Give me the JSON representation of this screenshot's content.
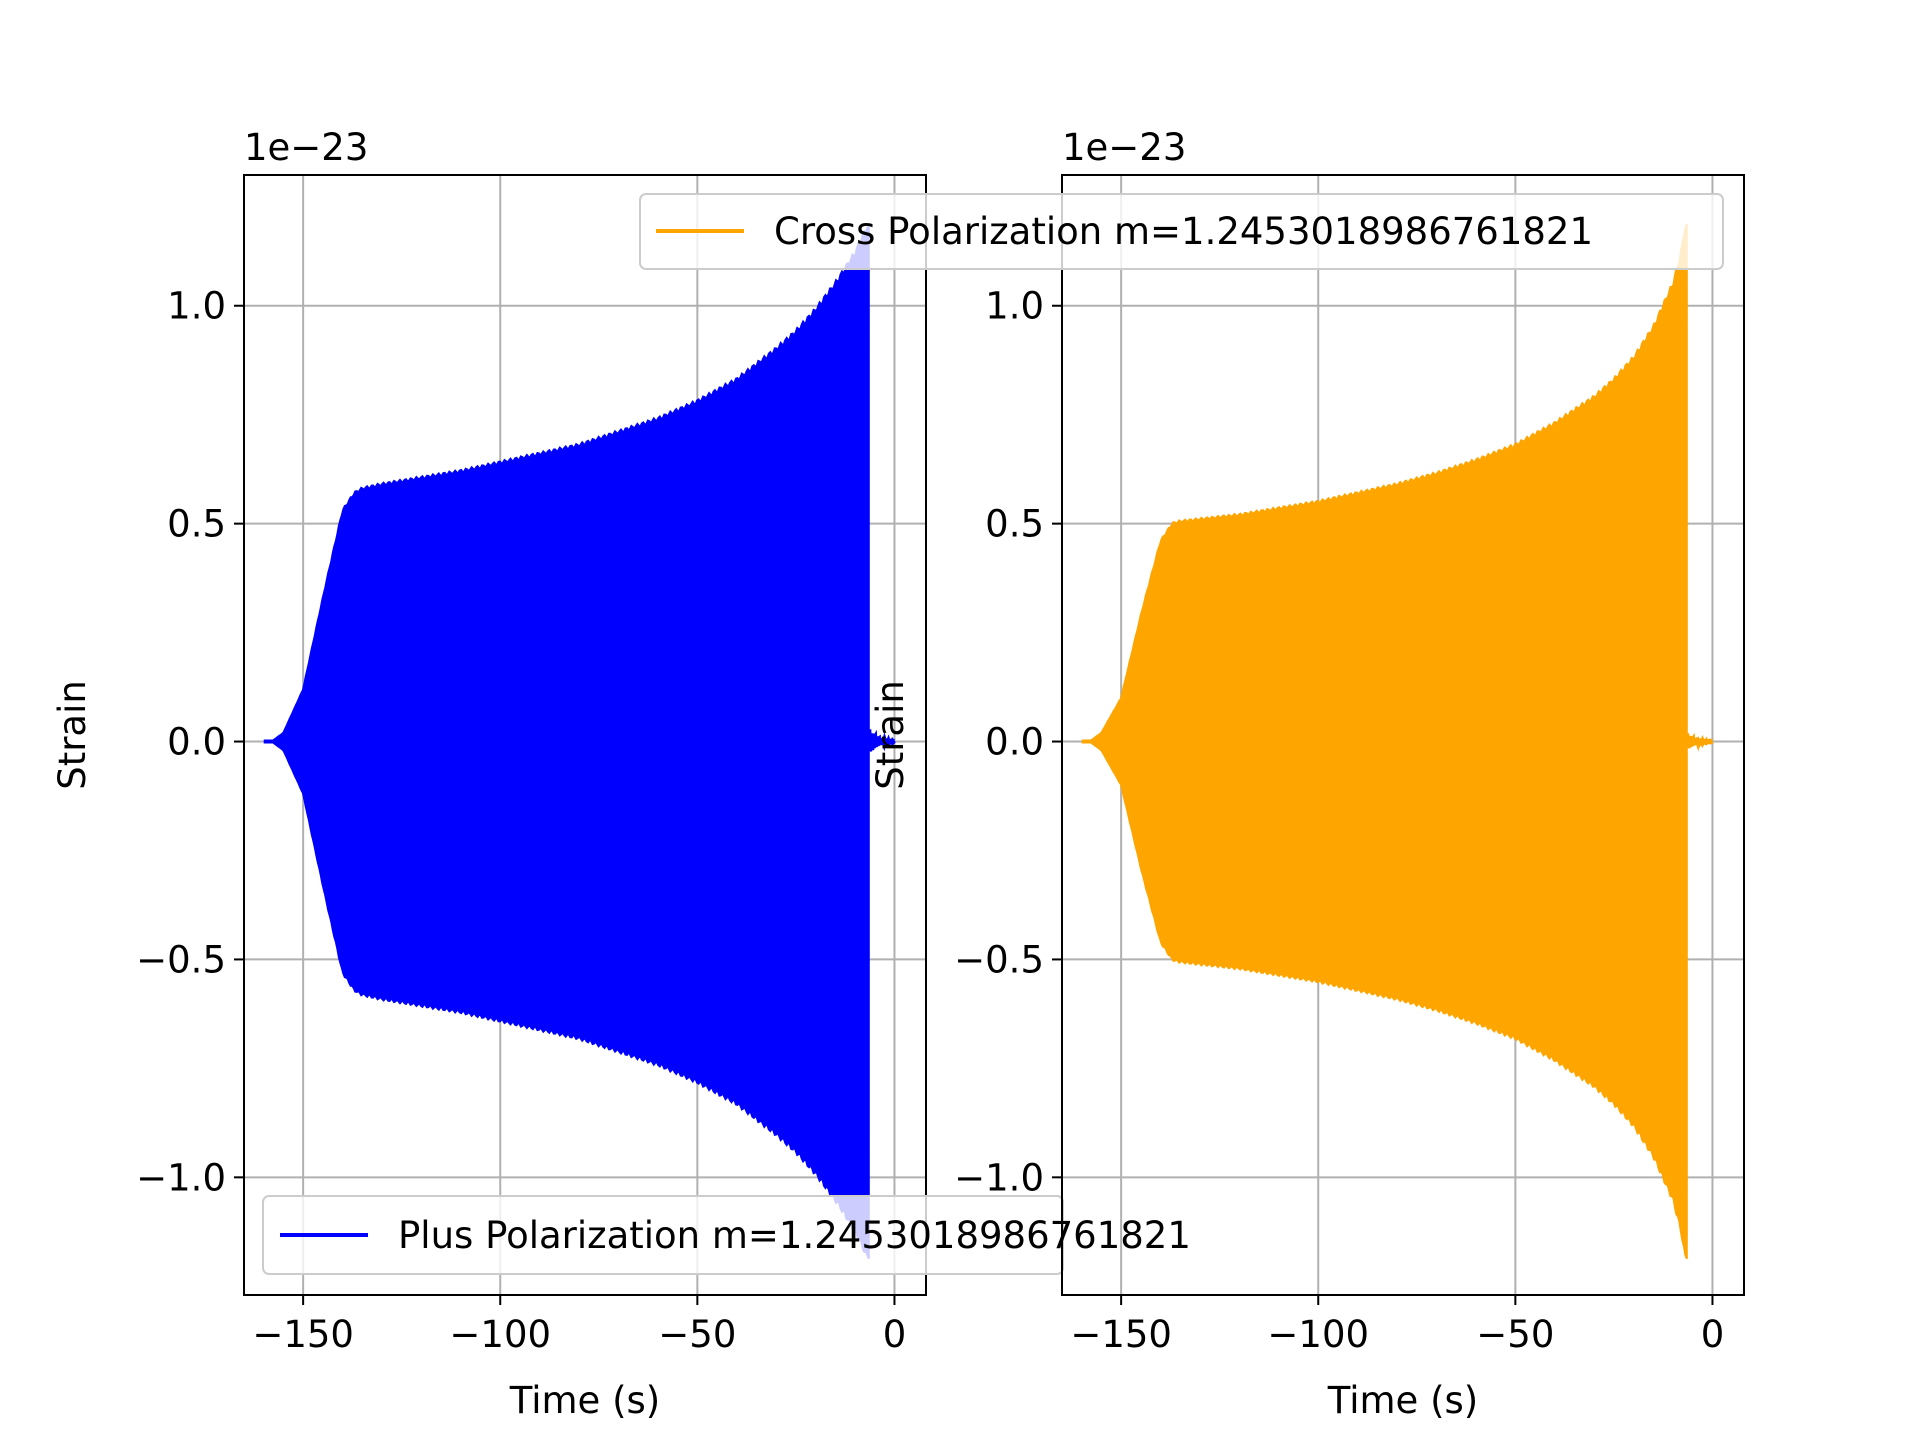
{
  "chart_data": [
    {
      "type": "line",
      "panel": "left",
      "xlabel": "Time (s)",
      "ylabel": "Strain",
      "offset_text": "1e−23",
      "xlim": [
        -165,
        8
      ],
      "ylim": [
        -1.27,
        1.3
      ],
      "x_ticks": [
        -150,
        -100,
        -50,
        0
      ],
      "x_tick_labels": [
        "−150",
        "−100",
        "−50",
        "0"
      ],
      "y_ticks": [
        -1.0,
        -0.5,
        0.0,
        0.5,
        1.0
      ],
      "y_tick_labels": [
        "−1.0",
        "−0.5",
        "0.0",
        "0.5",
        "1.0"
      ],
      "grid": true,
      "series": [
        {
          "name": "Plus Polarization m=1.2453018986761821",
          "color": "#0000ff",
          "t_start": -158,
          "t_end": -6.5,
          "envelope": {
            "t": [
              -158,
              -155,
              -150,
              -145,
              -140,
              -137,
              -135,
              -130,
              -120,
              -110,
              -100,
              -90,
              -80,
              -70,
              -60,
              -50,
              -40,
              -30,
              -25,
              -20,
              -15,
              -10,
              -8,
              -7
            ],
            "amp": [
              0.0,
              0.02,
              0.12,
              0.33,
              0.53,
              0.57,
              0.58,
              0.59,
              0.605,
              0.62,
              0.64,
              0.66,
              0.68,
              0.71,
              0.74,
              0.78,
              0.83,
              0.9,
              0.94,
              0.99,
              1.05,
              1.12,
              1.16,
              1.18
            ]
          },
          "ringdown": {
            "t_start": -6.5,
            "t_end": 0,
            "amp": 0.03
          }
        }
      ],
      "legend": {
        "position": "lower-left",
        "label": "Plus Polarization m=1.2453018986761821"
      }
    },
    {
      "type": "line",
      "panel": "right",
      "xlabel": "Time (s)",
      "ylabel": "Strain",
      "offset_text": "1e−23",
      "xlim": [
        -165,
        8
      ],
      "ylim": [
        -1.27,
        1.3
      ],
      "x_ticks": [
        -150,
        -100,
        -50,
        0
      ],
      "x_tick_labels": [
        "−150",
        "−100",
        "−50",
        "0"
      ],
      "y_ticks": [
        -1.0,
        -0.5,
        0.0,
        0.5,
        1.0
      ],
      "y_tick_labels": [
        "−1.0",
        "−0.5",
        "0.0",
        "0.5",
        "1.0"
      ],
      "grid": true,
      "series": [
        {
          "name": "Cross Polarization m=1.2453018986761821",
          "color": "#ffa500",
          "t_start": -158,
          "t_end": -6.5,
          "envelope": {
            "t": [
              -158,
              -155,
              -150,
              -145,
              -140,
              -137,
              -135,
              -130,
              -120,
              -110,
              -100,
              -90,
              -80,
              -70,
              -60,
              -50,
              -40,
              -30,
              -25,
              -20,
              -15,
              -10,
              -8,
              -7
            ],
            "amp": [
              0.0,
              0.02,
              0.1,
              0.29,
              0.46,
              0.5,
              0.505,
              0.51,
              0.52,
              0.535,
              0.55,
              0.57,
              0.59,
              0.615,
              0.645,
              0.68,
              0.73,
              0.79,
              0.83,
              0.88,
              0.95,
              1.05,
              1.12,
              1.18
            ]
          },
          "ringdown": {
            "t_start": -6.5,
            "t_end": 0,
            "amp": 0.02
          }
        }
      ],
      "legend": {
        "position": "upper-right",
        "label": "Cross Polarization m=1.2453018986761821"
      }
    }
  ]
}
